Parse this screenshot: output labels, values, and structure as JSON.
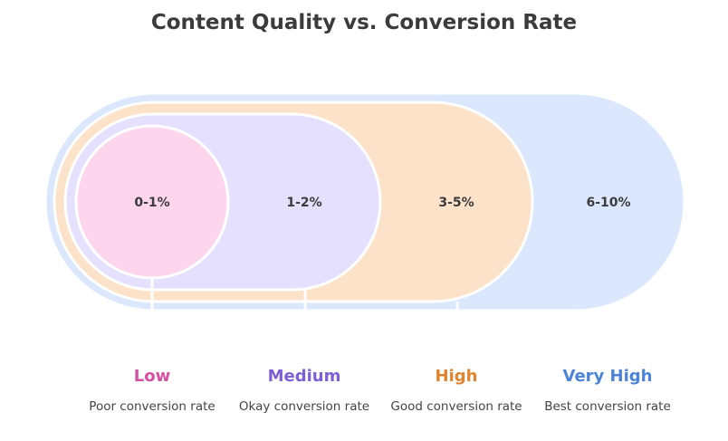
{
  "title": "Content Quality vs. Conversion Rate",
  "tiers": [
    {
      "range": "0-1%",
      "level": "Low",
      "description": "Poor conversion rate",
      "fill": "#fdd5ec",
      "label_color": "#d64ea0"
    },
    {
      "range": "1-2%",
      "level": "Medium",
      "description": "Okay conversion rate",
      "fill": "#e5e0fd",
      "label_color": "#7b5fd6"
    },
    {
      "range": "3-5%",
      "level": "High",
      "description": "Good conversion rate",
      "fill": "#fde2ca",
      "label_color": "#e0842f"
    },
    {
      "range": "6-10%",
      "level": "Very High",
      "description": "Best conversion rate",
      "fill": "#dae7fd",
      "label_color": "#4a83d9"
    }
  ]
}
